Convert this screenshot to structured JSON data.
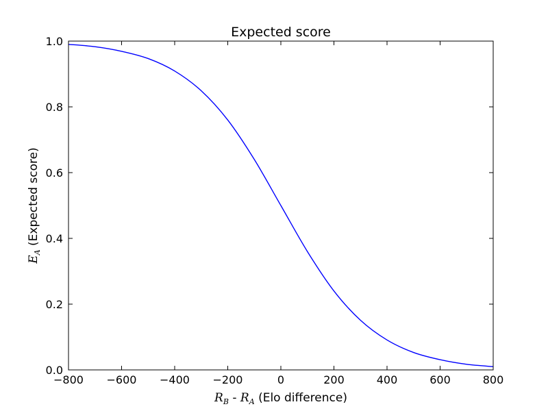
{
  "chart_data": {
    "type": "line",
    "title": "Expected score",
    "xlabel": {
      "var1": "R",
      "sub1": "B",
      "sep": " - ",
      "var2": "R",
      "sub2": "A",
      "suffix": " (Elo difference)"
    },
    "ylabel": {
      "var": "E",
      "sub": "A",
      "suffix": " (Expected score)"
    },
    "xlim": [
      -800,
      800
    ],
    "ylim": [
      0.0,
      1.0
    ],
    "xticks": [
      -800,
      -600,
      -400,
      -200,
      0,
      200,
      400,
      600,
      800
    ],
    "xtick_labels": [
      "−800",
      "−600",
      "−400",
      "−200",
      "0",
      "200",
      "400",
      "600",
      "800"
    ],
    "yticks": [
      0.0,
      0.2,
      0.4,
      0.6,
      0.8,
      1.0
    ],
    "ytick_labels": [
      "0.0",
      "0.2",
      "0.4",
      "0.6",
      "0.8",
      "1.0"
    ],
    "grid": false,
    "series": [
      {
        "color": "#0000ff",
        "x": [
          -800,
          -700,
          -600,
          -500,
          -400,
          -300,
          -200,
          -100,
          0,
          100,
          200,
          300,
          400,
          500,
          600,
          700,
          800
        ],
        "y": [
          0.99,
          0.983,
          0.969,
          0.947,
          0.909,
          0.849,
          0.76,
          0.64,
          0.5,
          0.36,
          0.24,
          0.151,
          0.091,
          0.053,
          0.031,
          0.017,
          0.01
        ]
      }
    ]
  }
}
